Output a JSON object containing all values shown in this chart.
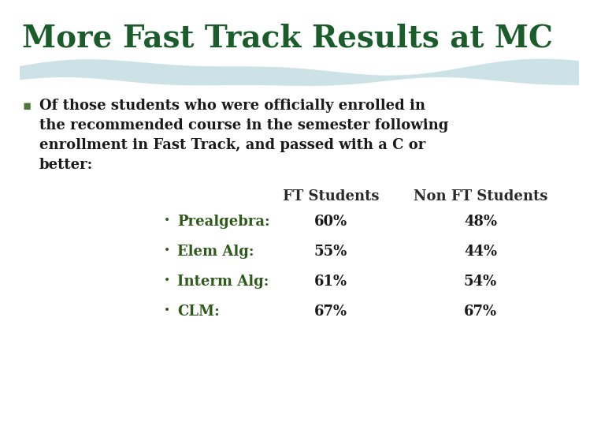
{
  "title": "More Fast Track Results at MC",
  "title_color": "#1a5c2a",
  "title_fontsize": 28,
  "background_color": "#ffffff",
  "bullet_square_color": "#4a7a3a",
  "text_color": "#1a1a1a",
  "data_color": "#1a1a1a",
  "wave_color": "#c8dfe5",
  "label_color": "#2d5a1b",
  "header_color": "#2a2a2a",
  "table_header": [
    "FT Students",
    "Non FT Students"
  ],
  "table_rows": [
    {
      "label": "Prealgebra:",
      "ft": "60%",
      "nft": "48%"
    },
    {
      "label": "Elem Alg:",
      "ft": "55%",
      "nft": "44%"
    },
    {
      "label": "Interm Alg:",
      "ft": "61%",
      "nft": "54%"
    },
    {
      "label": "CLM:",
      "ft": "67%",
      "nft": "67%"
    }
  ],
  "bullet_lines": [
    "Of those students who were officially enrolled in",
    "the recommended course in the semester following",
    "enrollment in Fast Track, and passed with a C or",
    "better:"
  ]
}
